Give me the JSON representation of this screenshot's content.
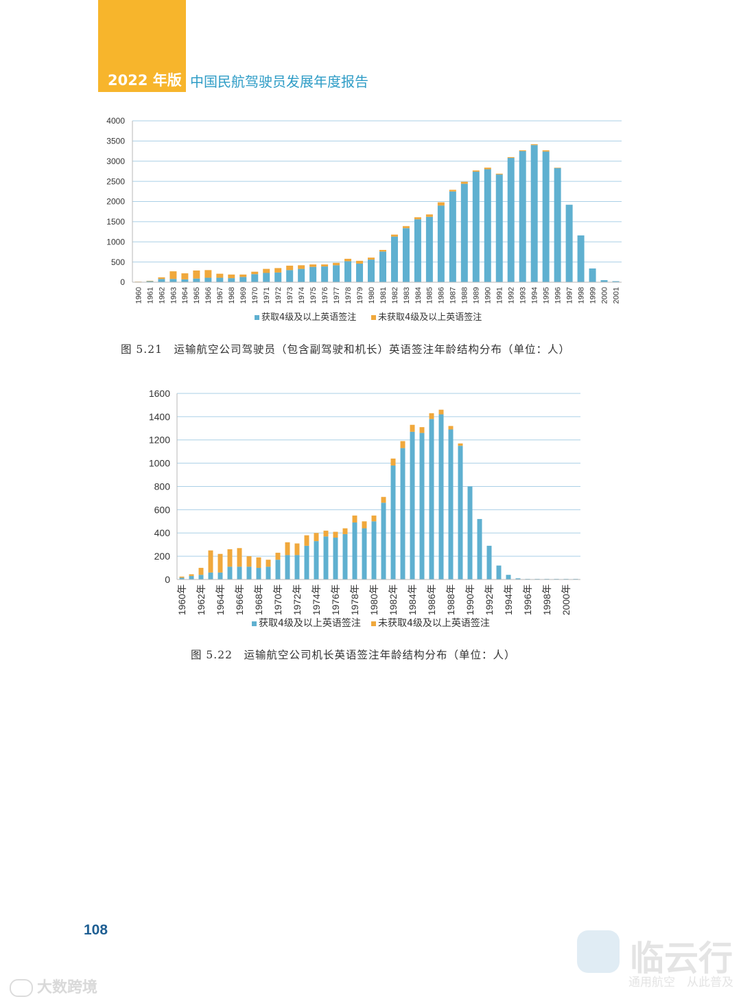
{
  "header": {
    "edition": "2022 年版",
    "title": "中国民航驾驶员发展年度报告",
    "tab_color": "#f7b52c",
    "title_color": "#2e9cc6"
  },
  "colors": {
    "series_1": "#5fb0d0",
    "series_2": "#f0a83c",
    "grid": "#a9cfe6"
  },
  "chart_data": [
    {
      "type": "bar",
      "stacked": true,
      "title": "",
      "caption": "图 5.21　运输航空公司驾驶员（包含副驾驶和机长）英语签注年龄结构分布（单位：人）",
      "xlabel": "",
      "ylabel": "",
      "ylim": [
        0,
        4000
      ],
      "yticks": [
        0,
        500,
        1000,
        1500,
        2000,
        2500,
        3000,
        3500,
        4000
      ],
      "grid": true,
      "legend_position": "bottom",
      "categories": [
        "1960",
        "1961",
        "1962",
        "1963",
        "1964",
        "1965",
        "1966",
        "1967",
        "1968",
        "1969",
        "1970",
        "1971",
        "1972",
        "1973",
        "1974",
        "1975",
        "1976",
        "1977",
        "1978",
        "1979",
        "1980",
        "1981",
        "1982",
        "1983",
        "1984",
        "1985",
        "1986",
        "1987",
        "1988",
        "1989",
        "1990",
        "1991",
        "1992",
        "1993",
        "1994",
        "1995",
        "1996",
        "1997",
        "1998",
        "1999",
        "2000",
        "2001"
      ],
      "series": [
        {
          "name": "获取4级及以上英语签注",
          "values": [
            10,
            25,
            80,
            80,
            70,
            90,
            110,
            110,
            100,
            130,
            200,
            230,
            240,
            300,
            330,
            380,
            390,
            420,
            520,
            460,
            560,
            760,
            1130,
            1340,
            1560,
            1620,
            1900,
            2250,
            2440,
            2740,
            2800,
            2670,
            3080,
            3250,
            3400,
            3240,
            2830,
            1920,
            1160,
            340,
            50,
            25
          ]
        },
        {
          "name": "未获取4级及以上英语签注",
          "values": [
            5,
            10,
            40,
            190,
            150,
            200,
            190,
            100,
            90,
            60,
            60,
            100,
            110,
            110,
            90,
            60,
            50,
            60,
            60,
            70,
            50,
            40,
            50,
            50,
            50,
            60,
            80,
            40,
            50,
            30,
            40,
            20,
            20,
            20,
            20,
            30,
            10,
            0,
            0,
            0,
            0,
            0
          ]
        }
      ]
    },
    {
      "type": "bar",
      "stacked": true,
      "title": "",
      "caption": "图 5.22　运输航空公司机长英语签注年龄结构分布（单位：人）",
      "xlabel": "",
      "ylabel": "",
      "ylim": [
        0,
        1600
      ],
      "yticks": [
        0,
        200,
        400,
        600,
        800,
        1000,
        1200,
        1400,
        1600
      ],
      "grid": true,
      "legend_position": "bottom",
      "categories": [
        "1960年",
        "1961年",
        "1962年",
        "1963年",
        "1964年",
        "1965年",
        "1966年",
        "1967年",
        "1968年",
        "1969年",
        "1970年",
        "1971年",
        "1972年",
        "1973年",
        "1974年",
        "1975年",
        "1976年",
        "1977年",
        "1978年",
        "1979年",
        "1980年",
        "1981年",
        "1982年",
        "1983年",
        "1984年",
        "1985年",
        "1986年",
        "1987年",
        "1988年",
        "1989年",
        "1990年",
        "1991年",
        "1992年",
        "1993年",
        "1994年",
        "1995年",
        "1996年",
        "1997年",
        "1998年",
        "1999年",
        "2000年",
        "2001年"
      ],
      "category_labels_shown": [
        "1960年",
        "1962年",
        "1964年",
        "1966年",
        "1968年",
        "1970年",
        "1972年",
        "1974年",
        "1976年",
        "1978年",
        "1980年",
        "1982年",
        "1984年",
        "1986年",
        "1988年",
        "1990年",
        "1992年",
        "1994年",
        "1996年",
        "1998年",
        "2000年"
      ],
      "series": [
        {
          "name": "获取4级及以上英语签注",
          "values": [
            15,
            30,
            40,
            60,
            60,
            110,
            110,
            110,
            100,
            110,
            170,
            210,
            210,
            290,
            330,
            370,
            360,
            390,
            490,
            440,
            500,
            660,
            980,
            1130,
            1270,
            1260,
            1380,
            1420,
            1290,
            1150,
            800,
            520,
            290,
            120,
            40,
            10,
            5,
            5,
            5,
            5,
            5,
            5
          ]
        },
        {
          "name": "未获取4级及以上英语签注",
          "values": [
            10,
            15,
            60,
            190,
            160,
            150,
            160,
            90,
            90,
            60,
            60,
            110,
            100,
            90,
            70,
            50,
            50,
            50,
            60,
            60,
            50,
            50,
            60,
            60,
            60,
            50,
            50,
            40,
            30,
            20,
            0,
            0,
            0,
            0,
            0,
            0,
            0,
            0,
            0,
            0,
            0,
            0
          ]
        }
      ]
    }
  ],
  "page_number": "108",
  "watermarks": {
    "left": "大数跨境",
    "right_main": "临云行",
    "right_sub": "通用航空　从此普及"
  }
}
